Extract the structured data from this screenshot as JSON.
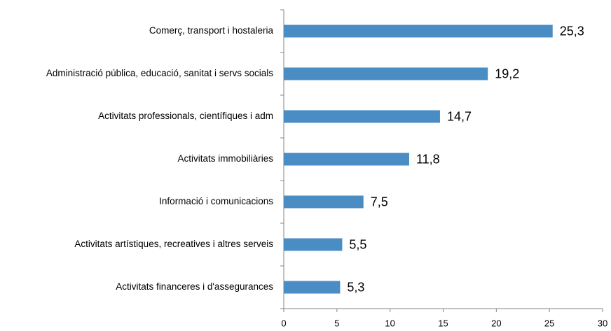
{
  "chart_data": {
    "type": "bar",
    "orientation": "horizontal",
    "categories": [
      "Comerç, transport i hostaleria",
      "Administració pública, educació, sanitat i servs socials",
      "Activitats professionals, científiques i adm",
      "Activitats immobiliàries",
      "Informació i comunicacions",
      "Activitats artístiques, recreatives i altres serveis",
      "Activitats financeres i d'assegurances"
    ],
    "values": [
      25.3,
      19.2,
      14.7,
      11.8,
      7.5,
      5.5,
      5.3
    ],
    "value_labels": [
      "25,3",
      "19,2",
      "14,7",
      "11,8",
      "7,5",
      "5,5",
      "5,3"
    ],
    "color": "#4a8cc4",
    "xlim": [
      0,
      30
    ],
    "xticks": [
      0,
      5,
      10,
      15,
      20,
      25,
      30
    ],
    "grid": false
  }
}
